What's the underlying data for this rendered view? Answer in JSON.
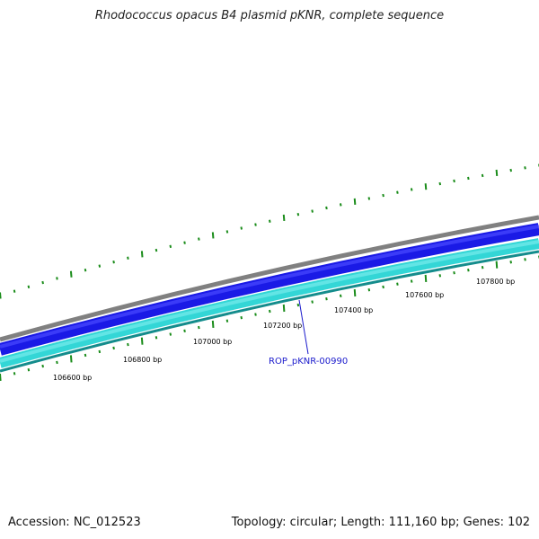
{
  "title": "Rhodococcus opacus B4 plasmid pKNR, complete sequence",
  "footer": {
    "accession": "Accession: NC_012523",
    "summary": "Topology: circular; Length: 111,160 bp; Genes: 102"
  },
  "colors": {
    "outer_ring": "#808080",
    "blue_ring": "#1a1ae6",
    "cyan_ring": "#33d6d6",
    "teal_ring": "#148c8c",
    "ticks": "#1a8c1a",
    "gene_label": "#1a1acc"
  },
  "tick_labels": [
    "106600 bp",
    "106800 bp",
    "107000 bp",
    "107200 bp",
    "107400 bp",
    "107600 bp",
    "107800 bp"
  ],
  "gene_labels": [
    "ROP_pKNR-00990"
  ]
}
